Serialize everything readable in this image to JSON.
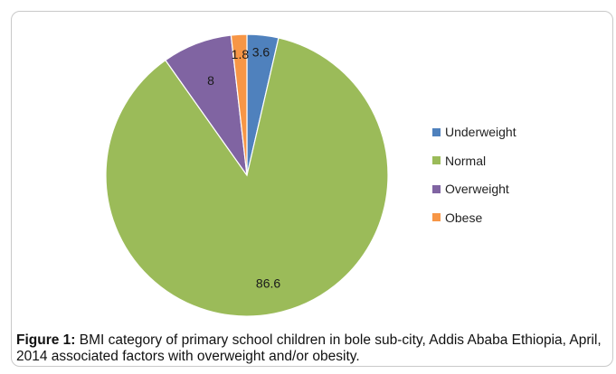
{
  "chart_data": {
    "type": "pie",
    "title": "",
    "categories": [
      "Underweight",
      "Normal",
      "Overweight",
      "Obese"
    ],
    "values": [
      3.6,
      86.6,
      8,
      1.8
    ],
    "data_labels": [
      "3.6",
      "86.6",
      "8",
      "1.8"
    ],
    "colors": [
      "#4f81bd",
      "#9bbb59",
      "#8064a2",
      "#f79646"
    ],
    "legend_position": "right",
    "start_angle": "top, clockwise"
  },
  "caption": {
    "label": "Figure 1:",
    "text": " BMI category of primary school children in bole sub-city, Addis Ababa Ethiopia, April, 2014 associated factors with overweight and/or obesity."
  }
}
